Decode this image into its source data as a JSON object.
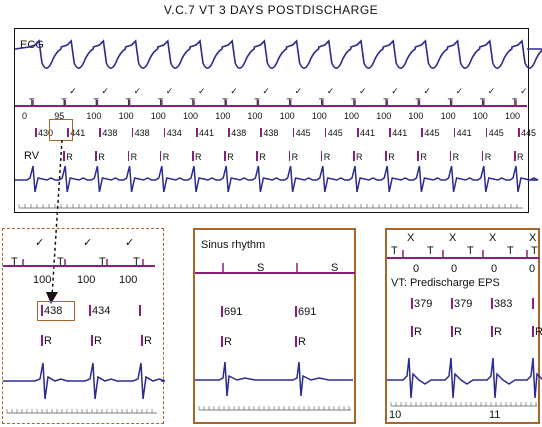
{
  "title": "V.C.7 VT 3 DAYS POSTDISCHARGE",
  "main": {
    "ecg_label": "ECG",
    "rv_label": "RV",
    "marker_char": "T",
    "check_char": "✓",
    "r_char": "R",
    "intervals_top": [
      "0",
      "95",
      "100",
      "100",
      "100",
      "100",
      "100",
      "100",
      "100",
      "100",
      "100",
      "100",
      "100",
      "100",
      "100",
      "100"
    ],
    "intervals_rr": [
      "430",
      "441",
      "438",
      "438",
      "434",
      "441",
      "438",
      "438",
      "445",
      "445",
      "441",
      "441",
      "445",
      "441",
      "445",
      "445"
    ]
  },
  "left_inset": {
    "markers": [
      "T",
      "T",
      "T",
      "T"
    ],
    "intervals": [
      "100",
      "100",
      "100"
    ],
    "rr": [
      "438",
      "434"
    ],
    "r_labels": [
      "R",
      "R",
      "R"
    ]
  },
  "mid_inset": {
    "label": "Sinus rhythm",
    "markers": [
      "S",
      "S"
    ],
    "rr": [
      "691",
      "691"
    ],
    "r_labels": [
      "R",
      "R"
    ]
  },
  "right_inset": {
    "x_marks": [
      "X",
      "X",
      "X",
      "X"
    ],
    "markers": [
      "T",
      "T",
      "T",
      "T",
      "T"
    ],
    "intervals": [
      "0",
      "0",
      "0",
      "0"
    ],
    "label": "VT: Predischarge EPS",
    "rr": [
      "379",
      "379",
      "383"
    ],
    "r_labels": [
      "R",
      "R",
      "R",
      "R"
    ],
    "time_marks": [
      "10",
      "11"
    ]
  },
  "colors": {
    "trace": "#2b2a8f",
    "marker_line": "#8a1f7a",
    "frame": "#a8652a"
  }
}
